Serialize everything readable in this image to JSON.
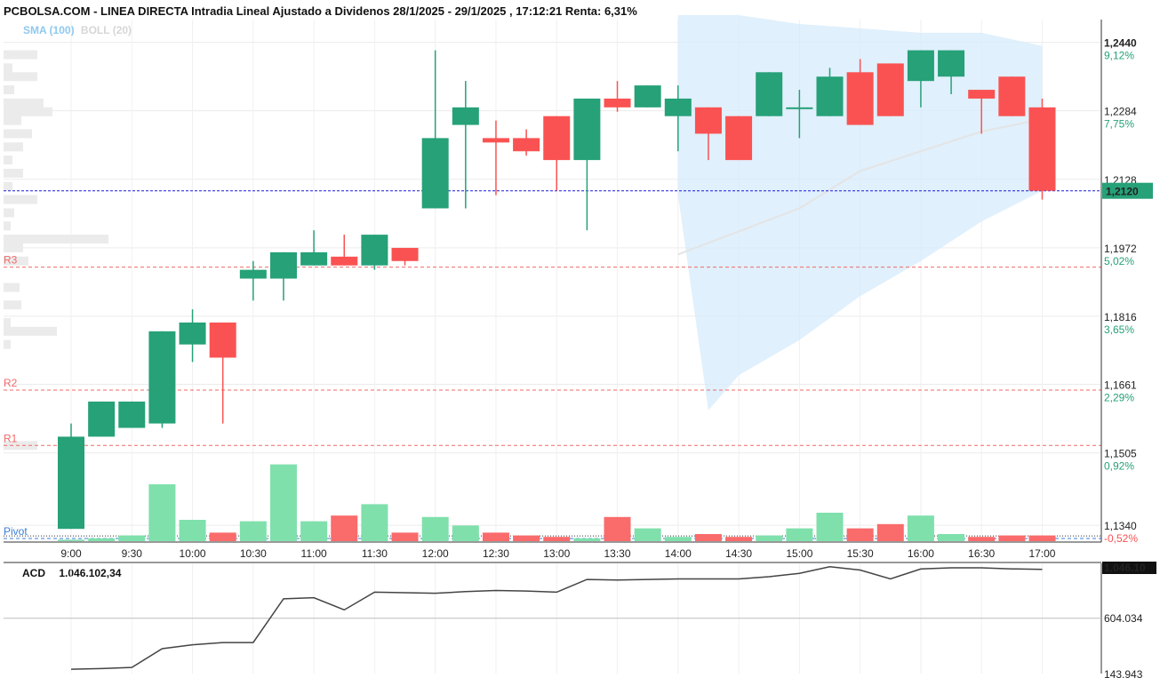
{
  "header": {
    "title": "PCBOLSA.COM - LINEA DIRECTA Intradia Lineal Ajustado a Dividenos 28/1/2025 - 29/1/2025 , 17:12:21 Renta: 6,31%",
    "sma_label": "SMA (100)",
    "boll_label": "BOLL (20)"
  },
  "colors": {
    "up": "#26a178",
    "down": "#fa5252",
    "vol_up": "#7fe0ac",
    "vol_down": "#fa6b6b",
    "band_fill": "#d5ebfb",
    "last_price_line": "#1a1ad6",
    "level_line": "#f06a6a",
    "pivot_line": "#3a7fd6",
    "pct_text": "#26a178",
    "neg_pct_text": "#fa5252"
  },
  "chart_data": [
    {
      "type": "candlestick",
      "title": "",
      "x_tick_labels": [
        "9:00",
        "9:30",
        "10:00",
        "10:30",
        "11:00",
        "11:30",
        "12:00",
        "12:30",
        "13:00",
        "13:30",
        "14:00",
        "14:30",
        "15:00",
        "15:30",
        "16:00",
        "16:30",
        "17:00"
      ],
      "y_tick_labels": [
        "1,2440",
        "1,2284",
        "1,2128",
        "1,1972",
        "1,1816",
        "1,1661",
        "1,1505",
        "1,1340"
      ],
      "pct_labels": [
        "9,12%",
        "7,75%",
        "5,02%",
        "3,65%",
        "2,29%",
        "0,92%",
        "-0,52%"
      ],
      "ylim": [
        1.132,
        1.251
      ],
      "last_price": 1.212,
      "last_price_label": "1,2120",
      "reference_level": 1.135,
      "levels": [
        {
          "label": "R3",
          "value": 1.1946,
          "color": "#f06a6a"
        },
        {
          "label": "R2",
          "value": 1.1666,
          "color": "#f06a6a"
        },
        {
          "label": "R1",
          "value": 1.154,
          "color": "#f06a6a"
        },
        {
          "label": "Pivot",
          "value": 1.1328,
          "color": "#3a7fd6"
        }
      ],
      "candles": [
        {
          "time": "9:00",
          "open": 1.135,
          "high": 1.159,
          "low": 1.135,
          "close": 1.156
        },
        {
          "time": "9:15",
          "open": 1.156,
          "high": 1.164,
          "low": 1.156,
          "close": 1.164
        },
        {
          "time": "9:30",
          "open": 1.158,
          "high": 1.164,
          "low": 1.158,
          "close": 1.164
        },
        {
          "time": "9:45",
          "open": 1.159,
          "high": 1.18,
          "low": 1.158,
          "close": 1.18
        },
        {
          "time": "10:00",
          "open": 1.177,
          "high": 1.185,
          "low": 1.173,
          "close": 1.182
        },
        {
          "time": "10:15",
          "open": 1.182,
          "high": 1.182,
          "low": 1.159,
          "close": 1.174
        },
        {
          "time": "10:30",
          "open": 1.192,
          "high": 1.196,
          "low": 1.187,
          "close": 1.194
        },
        {
          "time": "10:45",
          "open": 1.192,
          "high": 1.198,
          "low": 1.187,
          "close": 1.198
        },
        {
          "time": "11:00",
          "open": 1.195,
          "high": 1.203,
          "low": 1.195,
          "close": 1.198
        },
        {
          "time": "11:15",
          "open": 1.197,
          "high": 1.202,
          "low": 1.195,
          "close": 1.195
        },
        {
          "time": "11:30",
          "open": 1.195,
          "high": 1.202,
          "low": 1.194,
          "close": 1.202
        },
        {
          "time": "11:45",
          "open": 1.199,
          "high": 1.199,
          "low": 1.195,
          "close": 1.196
        },
        {
          "time": "12:00",
          "open": 1.208,
          "high": 1.244,
          "low": 1.208,
          "close": 1.224
        },
        {
          "time": "12:15",
          "open": 1.227,
          "high": 1.237,
          "low": 1.208,
          "close": 1.231
        },
        {
          "time": "12:30",
          "open": 1.224,
          "high": 1.228,
          "low": 1.211,
          "close": 1.223
        },
        {
          "time": "12:45",
          "open": 1.224,
          "high": 1.226,
          "low": 1.22,
          "close": 1.221
        },
        {
          "time": "13:00",
          "open": 1.229,
          "high": 1.229,
          "low": 1.212,
          "close": 1.219
        },
        {
          "time": "13:15",
          "open": 1.219,
          "high": 1.233,
          "low": 1.203,
          "close": 1.233
        },
        {
          "time": "13:30",
          "open": 1.233,
          "high": 1.237,
          "low": 1.23,
          "close": 1.231
        },
        {
          "time": "13:45",
          "open": 1.231,
          "high": 1.236,
          "low": 1.231,
          "close": 1.236
        },
        {
          "time": "14:00",
          "open": 1.229,
          "high": 1.236,
          "low": 1.221,
          "close": 1.233
        },
        {
          "time": "14:15",
          "open": 1.231,
          "high": 1.231,
          "low": 1.219,
          "close": 1.225
        },
        {
          "time": "14:30",
          "open": 1.229,
          "high": 1.229,
          "low": 1.219,
          "close": 1.219
        },
        {
          "time": "14:45",
          "open": 1.229,
          "high": 1.239,
          "low": 1.229,
          "close": 1.239
        },
        {
          "time": "15:00",
          "open": 1.231,
          "high": 1.235,
          "low": 1.224,
          "close": 1.231
        },
        {
          "time": "15:15",
          "open": 1.229,
          "high": 1.24,
          "low": 1.229,
          "close": 1.238
        },
        {
          "time": "15:30",
          "open": 1.239,
          "high": 1.242,
          "low": 1.227,
          "close": 1.227
        },
        {
          "time": "15:45",
          "open": 1.241,
          "high": 1.241,
          "low": 1.229,
          "close": 1.229
        },
        {
          "time": "16:00",
          "open": 1.237,
          "high": 1.244,
          "low": 1.231,
          "close": 1.244
        },
        {
          "time": "16:15",
          "open": 1.238,
          "high": 1.244,
          "low": 1.234,
          "close": 1.244
        },
        {
          "time": "16:30",
          "open": 1.235,
          "high": 1.235,
          "low": 1.225,
          "close": 1.233
        },
        {
          "time": "16:45",
          "open": 1.238,
          "high": 1.238,
          "low": 1.229,
          "close": 1.229
        },
        {
          "time": "17:00",
          "open": 1.231,
          "high": 1.233,
          "low": 1.21,
          "close": 1.212
        }
      ],
      "volume": [
        1,
        2,
        4,
        40,
        15,
        6,
        14,
        54,
        14,
        18,
        26,
        6,
        17,
        11,
        6,
        4,
        3,
        2,
        17,
        9,
        3,
        5,
        3,
        4,
        9,
        20,
        9,
        12,
        18,
        5,
        3,
        4,
        4
      ],
      "sma_100": [
        {
          "time": "14:00",
          "value": 1.1975
        },
        {
          "time": "15:00",
          "value": 1.208
        },
        {
          "time": "15:30",
          "value": 1.2165
        },
        {
          "time": "16:00",
          "value": 1.221
        },
        {
          "time": "16:30",
          "value": 1.2255
        },
        {
          "time": "17:00",
          "value": 1.2283
        }
      ],
      "boll_upper": [
        {
          "time": "14:00",
          "value": 1.252
        },
        {
          "time": "14:30",
          "value": 1.252
        },
        {
          "time": "15:00",
          "value": 1.25
        },
        {
          "time": "15:30",
          "value": 1.249
        },
        {
          "time": "16:00",
          "value": 1.248
        },
        {
          "time": "16:30",
          "value": 1.248
        },
        {
          "time": "17:00",
          "value": 1.245
        }
      ],
      "boll_lower": [
        {
          "time": "14:00",
          "value": 1.211
        },
        {
          "time": "14:15",
          "value": 1.162
        },
        {
          "time": "14:30",
          "value": 1.17
        },
        {
          "time": "15:00",
          "value": 1.178
        },
        {
          "time": "15:30",
          "value": 1.188
        },
        {
          "time": "16:00",
          "value": 1.196
        },
        {
          "time": "16:30",
          "value": 1.205
        },
        {
          "time": "17:00",
          "value": 1.212
        }
      ],
      "volume_profile": [
        {
          "price": 1.243,
          "value": 38
        },
        {
          "price": 1.24,
          "value": 10
        },
        {
          "price": 1.238,
          "value": 38
        },
        {
          "price": 1.235,
          "value": 12
        },
        {
          "price": 1.232,
          "value": 45
        },
        {
          "price": 1.23,
          "value": 55
        },
        {
          "price": 1.228,
          "value": 20
        },
        {
          "price": 1.225,
          "value": 32
        },
        {
          "price": 1.222,
          "value": 22
        },
        {
          "price": 1.219,
          "value": 10
        },
        {
          "price": 1.216,
          "value": 22
        },
        {
          "price": 1.213,
          "value": 10
        },
        {
          "price": 1.21,
          "value": 38
        },
        {
          "price": 1.207,
          "value": 12
        },
        {
          "price": 1.204,
          "value": 8
        },
        {
          "price": 1.201,
          "value": 118
        },
        {
          "price": 1.199,
          "value": 22
        },
        {
          "price": 1.196,
          "value": 28
        },
        {
          "price": 1.19,
          "value": 18
        },
        {
          "price": 1.186,
          "value": 20
        },
        {
          "price": 1.182,
          "value": 8
        },
        {
          "price": 1.18,
          "value": 60
        },
        {
          "price": 1.177,
          "value": 8
        },
        {
          "price": 1.154,
          "value": 38
        }
      ]
    },
    {
      "type": "line",
      "title": "ACD",
      "value_label": "1.046.102,34",
      "y_tick_labels": [
        "1.046.10",
        "604.034",
        "143.943"
      ],
      "ylim": [
        105000,
        1100000
      ],
      "x": [
        "9:00",
        "9:15",
        "9:30",
        "9:45",
        "10:00",
        "10:15",
        "10:30",
        "10:45",
        "11:00",
        "11:15",
        "11:30",
        "11:45",
        "12:00",
        "12:15",
        "12:30",
        "12:45",
        "13:00",
        "13:15",
        "13:30",
        "13:45",
        "14:00",
        "14:15",
        "14:30",
        "14:45",
        "15:00",
        "15:15",
        "15:30",
        "15:45",
        "16:00",
        "16:15",
        "16:30",
        "16:45",
        "17:00"
      ],
      "values": [
        143943,
        150000,
        160000,
        330000,
        365000,
        385000,
        385000,
        780000,
        790000,
        680000,
        840000,
        835000,
        830000,
        845000,
        855000,
        850000,
        840000,
        955000,
        950000,
        955000,
        960000,
        960000,
        960000,
        980000,
        1010000,
        1070000,
        1040000,
        960000,
        1050000,
        1060000,
        1060000,
        1050000,
        1046102
      ]
    }
  ]
}
